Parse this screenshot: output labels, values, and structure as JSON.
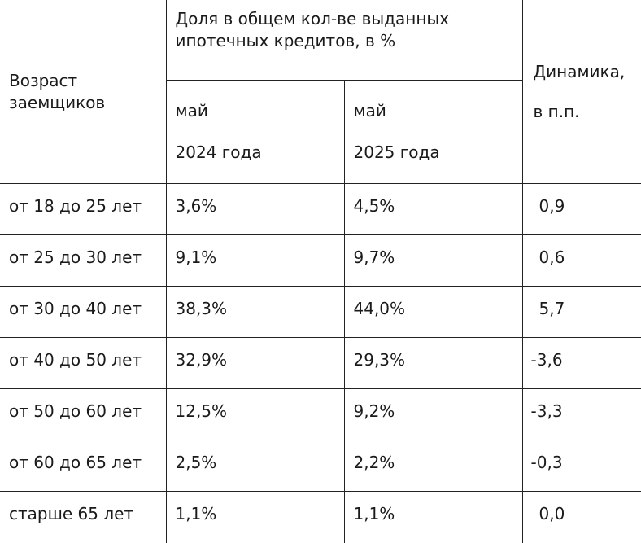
{
  "header": {
    "age_line1": "Возраст",
    "age_line2": "заемщиков",
    "share_line1": "Доля в общем кол-ве выданных",
    "share_line2": "ипотечных кредитов, в %",
    "dynamics_line1": "Динамика,",
    "dynamics_line2": "в п.п.",
    "period1_month": "май",
    "period1_year": "2024 года",
    "period2_month": "май",
    "period2_year": "2025 года"
  },
  "rows": [
    {
      "age": "от 18 до 25 лет",
      "may2024": "3,6%",
      "may2025": "4,5%",
      "dynamics": "0,9"
    },
    {
      "age": "от 25 до 30 лет",
      "may2024": "9,1%",
      "may2025": "9,7%",
      "dynamics": "0,6"
    },
    {
      "age": "от 30 до 40 лет",
      "may2024": "38,3%",
      "may2025": "44,0%",
      "dynamics": "5,7"
    },
    {
      "age": "от 40 до 50 лет",
      "may2024": "32,9%",
      "may2025": "29,3%",
      "dynamics": "-3,6"
    },
    {
      "age": "от 50 до 60 лет",
      "may2024": "12,5%",
      "may2025": "9,2%",
      "dynamics": "-3,3"
    },
    {
      "age": "от 60 до 65 лет",
      "may2024": "2,5%",
      "may2025": "2,2%",
      "dynamics": "-0,3"
    },
    {
      "age": "старше 65 лет",
      "may2024": "1,1%",
      "may2025": "1,1%",
      "dynamics": "0,0"
    }
  ]
}
